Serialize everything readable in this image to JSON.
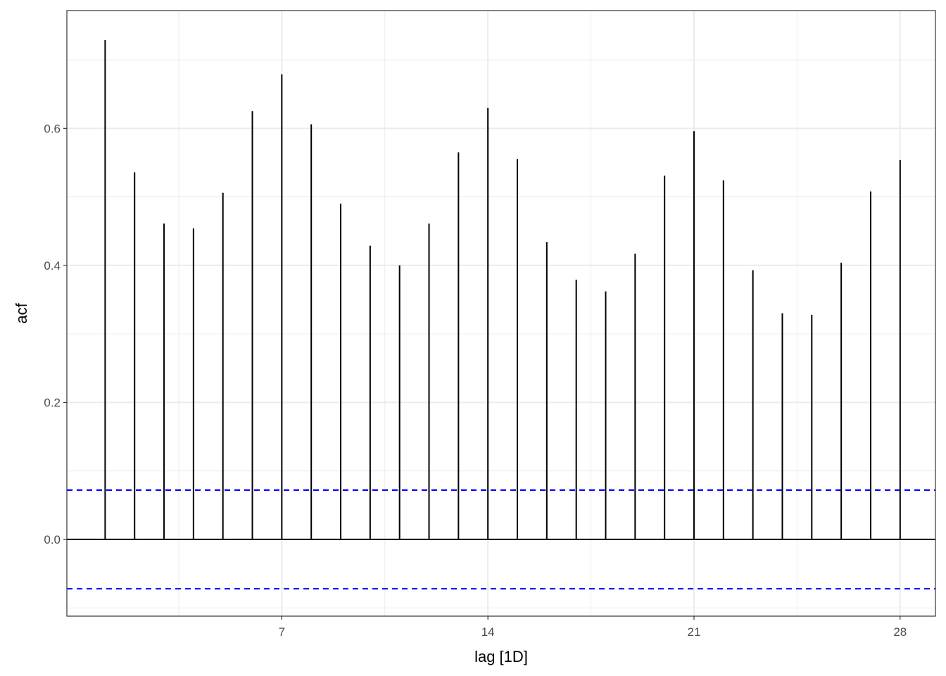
{
  "chart_data": {
    "type": "bar",
    "subtype": "acf-lollipop",
    "title": "",
    "xlabel": "lag [1D]",
    "ylabel": "acf",
    "x": [
      1,
      2,
      3,
      4,
      5,
      6,
      7,
      8,
      9,
      10,
      11,
      12,
      13,
      14,
      15,
      16,
      17,
      18,
      19,
      20,
      21,
      22,
      23,
      24,
      25,
      26,
      27,
      28
    ],
    "values": [
      0.729,
      0.536,
      0.461,
      0.454,
      0.506,
      0.625,
      0.679,
      0.606,
      0.49,
      0.429,
      0.4,
      0.461,
      0.565,
      0.63,
      0.555,
      0.434,
      0.379,
      0.362,
      0.417,
      0.531,
      0.596,
      0.524,
      0.393,
      0.33,
      0.328,
      0.404,
      0.508,
      0.554
    ],
    "confidence_bound": 0.072,
    "xlim": [
      -0.3,
      29.2
    ],
    "ylim": [
      -0.112,
      0.772
    ],
    "xticks": [
      7,
      14,
      21,
      28
    ],
    "xtick_labels": [
      "7",
      "14",
      "21",
      "28"
    ],
    "yticks": [
      0.0,
      0.2,
      0.4,
      0.6
    ],
    "ytick_labels": [
      "0.0",
      "0.2",
      "0.4",
      "0.6"
    ],
    "grid": true,
    "colors": {
      "stem": "#000000",
      "bound": "#0000ff",
      "grid": "#ebebeb",
      "panel_border": "#333333"
    }
  }
}
